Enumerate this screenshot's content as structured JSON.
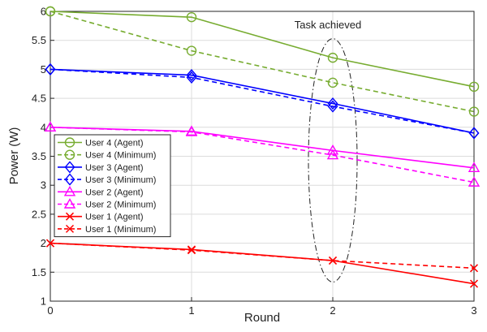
{
  "chart_data": {
    "type": "line",
    "xlabel": "Round",
    "ylabel": "Power (W)",
    "xlim": [
      0,
      3
    ],
    "ylim": [
      1,
      6
    ],
    "x": [
      0,
      1,
      2,
      3
    ],
    "x_ticks": [
      "0",
      "1",
      "2",
      "3"
    ],
    "y_ticks": [
      "1",
      "1.5",
      "2",
      "2.5",
      "3",
      "3.5",
      "4",
      "4.5",
      "5",
      "5.5",
      "6"
    ],
    "grid": true,
    "legend_position": "left",
    "annotation": {
      "text": "Task achieved",
      "x": 2,
      "y_range": [
        1.33,
        5.53
      ],
      "shape": "dash-dot ellipse"
    },
    "series": [
      {
        "name": "User 4 (Agent)",
        "values": [
          6.0,
          5.9,
          5.2,
          4.7
        ],
        "color": "#77ac30",
        "marker": "circle",
        "style": "solid"
      },
      {
        "name": "User 4 (Minimum)",
        "values": [
          6.0,
          5.32,
          4.77,
          4.27
        ],
        "color": "#77ac30",
        "marker": "circle",
        "style": "dashed"
      },
      {
        "name": "User 3 (Agent)",
        "values": [
          5.0,
          4.9,
          4.41,
          3.9
        ],
        "color": "#0000ff",
        "marker": "diamond",
        "style": "solid"
      },
      {
        "name": "User 3 (Minimum)",
        "values": [
          5.0,
          4.86,
          4.36,
          3.9
        ],
        "color": "#0000ff",
        "marker": "diamond",
        "style": "dashed"
      },
      {
        "name": "User 2 (Agent)",
        "values": [
          4.0,
          3.93,
          3.6,
          3.3
        ],
        "color": "#ff00ff",
        "marker": "triangle",
        "style": "solid"
      },
      {
        "name": "User 2 (Minimum)",
        "values": [
          4.0,
          3.92,
          3.52,
          3.05
        ],
        "color": "#ff00ff",
        "marker": "triangle",
        "style": "dashed"
      },
      {
        "name": "User 1 (Agent)",
        "values": [
          2.0,
          1.89,
          1.7,
          1.3
        ],
        "color": "#ff0000",
        "marker": "x",
        "style": "solid"
      },
      {
        "name": "User 1 (Minimum)",
        "values": [
          2.0,
          1.88,
          1.7,
          1.57
        ],
        "color": "#ff0000",
        "marker": "x",
        "style": "dashed"
      }
    ]
  }
}
